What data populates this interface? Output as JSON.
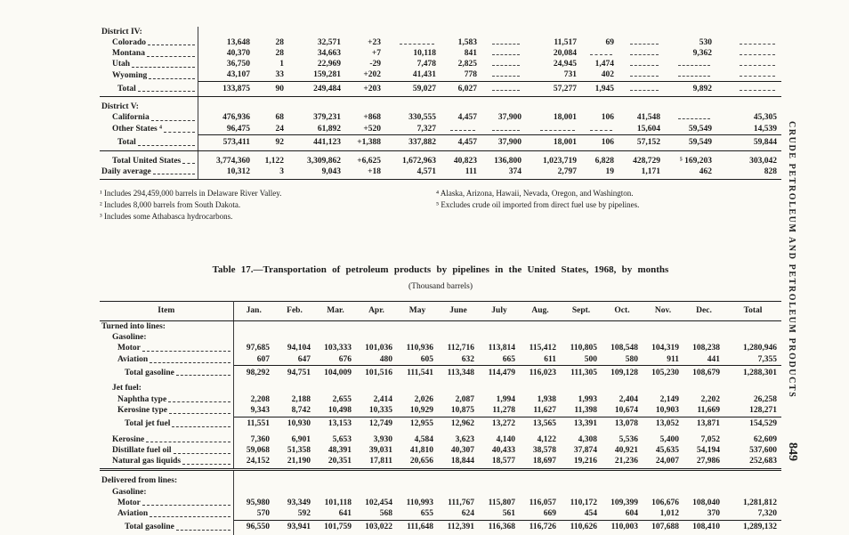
{
  "page": {
    "side_label": "CRUDE PETROLEUM AND PETROLEUM PRODUCTS",
    "page_number": "849"
  },
  "continuation_table": {
    "ncols": 12,
    "rows": [
      {
        "label": "District IV:",
        "indent": 0,
        "cls": "section"
      },
      {
        "label": "Colorado",
        "indent": 1,
        "values": [
          "13,648",
          "28",
          "32,571",
          "+23",
          "",
          "1,583",
          "",
          "11,517",
          "69",
          "",
          "530",
          ""
        ]
      },
      {
        "label": "Montana",
        "indent": 1,
        "values": [
          "40,370",
          "28",
          "34,663",
          "+7",
          "10,118",
          "841",
          "",
          "20,084",
          "",
          "",
          "9,362",
          ""
        ]
      },
      {
        "label": "Utah",
        "indent": 1,
        "values": [
          "36,750",
          "1",
          "22,969",
          "-29",
          "7,478",
          "2,825",
          "",
          "24,945",
          "1,474",
          "",
          "",
          ""
        ]
      },
      {
        "label": "Wyoming",
        "indent": 1,
        "values": [
          "43,107",
          "33",
          "159,281",
          "+202",
          "41,431",
          "778",
          "",
          "731",
          "402",
          "",
          "",
          ""
        ]
      },
      {
        "label": "Total",
        "indent": 2,
        "cls": "total rule-below pad",
        "values": [
          "133,875",
          "90",
          "249,484",
          "+203",
          "59,027",
          "6,027",
          "",
          "57,277",
          "1,945",
          "",
          "9,892",
          ""
        ]
      },
      {
        "label": "District V:",
        "indent": 0,
        "cls": "section gap-above"
      },
      {
        "label": "California",
        "indent": 1,
        "values": [
          "476,936",
          "68",
          "379,231",
          "+868",
          "330,555",
          "4,457",
          "37,900",
          "18,001",
          "106",
          "41,548",
          "",
          "45,305"
        ]
      },
      {
        "label": "Other States ⁴",
        "indent": 1,
        "values": [
          "96,475",
          "24",
          "61,892",
          "+520",
          "7,327",
          "",
          "",
          "",
          "",
          "15,604",
          "59,549",
          "14,539"
        ]
      },
      {
        "label": "Total",
        "indent": 2,
        "cls": "total rule-below pad",
        "values": [
          "573,411",
          "92",
          "441,123",
          "+1,388",
          "337,882",
          "4,457",
          "37,900",
          "18,001",
          "106",
          "57,152",
          "59,549",
          "59,844"
        ]
      },
      {
        "label": "Total United States",
        "indent": 1,
        "cls": "gap-above",
        "values": [
          "3,774,360",
          "1,122",
          "3,309,862",
          "+6,625",
          "1,672,963",
          "40,823",
          "136,800",
          "1,023,719",
          "6,828",
          "428,729",
          "⁵ 169,203",
          "303,042"
        ]
      },
      {
        "label": "Daily average",
        "indent": 0,
        "cls": "rule-below pad",
        "values": [
          "10,312",
          "3",
          "9,043",
          "+18",
          "4,571",
          "111",
          "374",
          "2,797",
          "19",
          "1,171",
          "462",
          "828"
        ]
      }
    ],
    "footnotes_left": [
      "¹ Includes 294,459,000 barrels in Delaware River Valley.",
      "² Includes 8,000 barrels from South Dakota.",
      "³ Includes some Athabasca hydrocarbons."
    ],
    "footnotes_right": [
      "⁴ Alaska, Arizona, Hawaii, Nevada, Oregon, and Washington.",
      "⁵ Excludes crude oil imported from direct fuel use by pipelines."
    ]
  },
  "table17": {
    "title": "Table 17.—Transportation of petroleum products by pipelines in the United States, 1968, by months",
    "subtitle": "(Thousand barrels)",
    "ncols": 13,
    "columns": [
      "Item",
      "Jan.",
      "Feb.",
      "Mar.",
      "Apr.",
      "May",
      "June",
      "July",
      "Aug.",
      "Sept.",
      "Oct.",
      "Nov.",
      "Dec.",
      "Total"
    ],
    "rows": [
      {
        "label": "Turned into lines:",
        "indent": 0,
        "cls": "section"
      },
      {
        "label": "Gasoline:",
        "indent": 1,
        "cls": "section"
      },
      {
        "label": "Motor",
        "indent": 2,
        "values": [
          "97,685",
          "94,104",
          "103,333",
          "101,036",
          "110,936",
          "112,716",
          "113,814",
          "115,412",
          "110,805",
          "108,548",
          "104,319",
          "108,238",
          "1,280,946"
        ]
      },
      {
        "label": "Aviation",
        "indent": 2,
        "values": [
          "607",
          "647",
          "676",
          "480",
          "605",
          "632",
          "665",
          "611",
          "500",
          "580",
          "911",
          "441",
          "7,355"
        ]
      },
      {
        "label": "Total gasoline",
        "indent": 3,
        "cls": "total gap-below",
        "values": [
          "98,292",
          "94,751",
          "104,009",
          "101,516",
          "111,541",
          "113,348",
          "114,479",
          "116,023",
          "111,305",
          "109,128",
          "105,230",
          "108,679",
          "1,288,301"
        ]
      },
      {
        "label": "Jet fuel:",
        "indent": 1,
        "cls": "section"
      },
      {
        "label": "Naphtha type",
        "indent": 2,
        "values": [
          "2,208",
          "2,188",
          "2,655",
          "2,414",
          "2,026",
          "2,087",
          "1,994",
          "1,938",
          "1,993",
          "2,404",
          "2,149",
          "2,202",
          "26,258"
        ]
      },
      {
        "label": "Kerosine type",
        "indent": 2,
        "values": [
          "9,343",
          "8,742",
          "10,498",
          "10,335",
          "10,929",
          "10,875",
          "11,278",
          "11,627",
          "11,398",
          "10,674",
          "10,903",
          "11,669",
          "128,271"
        ]
      },
      {
        "label": "Total jet fuel",
        "indent": 3,
        "cls": "total gap-below",
        "values": [
          "11,551",
          "10,930",
          "13,153",
          "12,749",
          "12,955",
          "12,962",
          "13,272",
          "13,565",
          "13,391",
          "13,078",
          "13,052",
          "13,871",
          "154,529"
        ]
      },
      {
        "label": "Kerosine",
        "indent": 1,
        "values": [
          "7,360",
          "6,901",
          "5,653",
          "3,930",
          "4,584",
          "3,623",
          "4,140",
          "4,122",
          "4,308",
          "5,536",
          "5,400",
          "7,052",
          "62,609"
        ]
      },
      {
        "label": "Distillate fuel oil",
        "indent": 1,
        "values": [
          "59,068",
          "51,358",
          "48,391",
          "39,031",
          "41,810",
          "40,307",
          "40,433",
          "38,578",
          "37,874",
          "40,921",
          "45,635",
          "54,194",
          "537,600"
        ]
      },
      {
        "label": "Natural gas liquids",
        "indent": 1,
        "cls": "dbl-below pad",
        "values": [
          "24,152",
          "21,190",
          "20,351",
          "17,811",
          "20,656",
          "18,844",
          "18,577",
          "18,697",
          "19,216",
          "21,236",
          "24,007",
          "27,986",
          "252,683"
        ]
      },
      {
        "label": "Delivered from lines:",
        "indent": 0,
        "cls": "section gap-above"
      },
      {
        "label": "Gasoline:",
        "indent": 1,
        "cls": "section"
      },
      {
        "label": "Motor",
        "indent": 2,
        "values": [
          "95,980",
          "93,349",
          "101,118",
          "102,454",
          "110,993",
          "111,767",
          "115,807",
          "116,057",
          "110,172",
          "109,399",
          "106,676",
          "108,040",
          "1,281,812"
        ]
      },
      {
        "label": "Aviation",
        "indent": 2,
        "values": [
          "570",
          "592",
          "641",
          "568",
          "655",
          "624",
          "561",
          "669",
          "454",
          "604",
          "1,012",
          "370",
          "7,320"
        ]
      },
      {
        "label": "Total gasoline",
        "indent": 3,
        "cls": "total pad",
        "values": [
          "96,550",
          "93,941",
          "101,759",
          "103,022",
          "111,648",
          "112,391",
          "116,368",
          "116,726",
          "110,626",
          "110,003",
          "107,688",
          "108,410",
          "1,289,132"
        ]
      }
    ]
  }
}
